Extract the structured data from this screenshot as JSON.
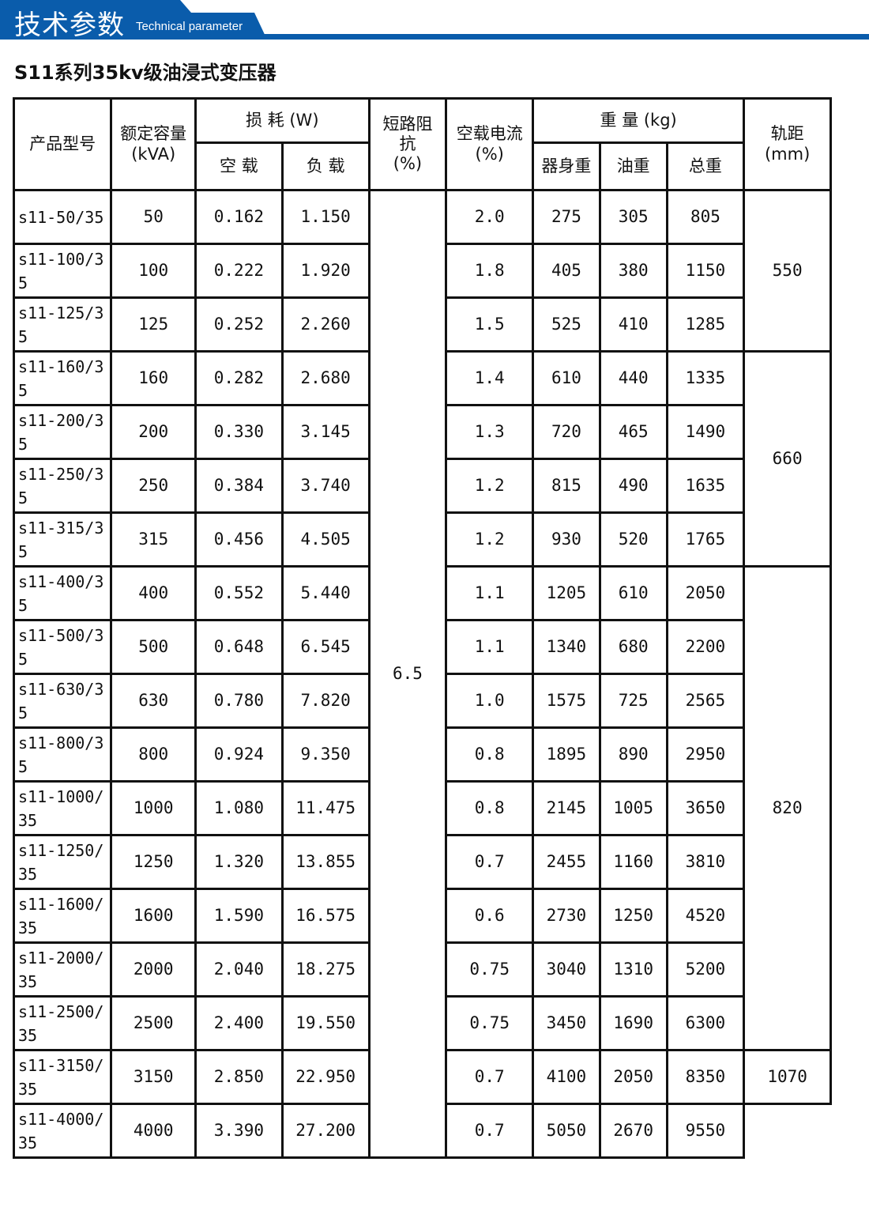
{
  "banner": {
    "title_cn": "技术参数",
    "title_en": "Technical parameter",
    "color": "#0a5cab"
  },
  "doc_title": "S11系列35kv级油浸式变压器",
  "headers": {
    "model": "产品型号",
    "capacity": "额定容量",
    "capacity_unit": "(kVA)",
    "loss": "损 耗 (W)",
    "noload": "空 载",
    "load": "负 载",
    "impedance": "短路阻抗",
    "impedance_unit": "(%)",
    "current": "空载电流",
    "current_unit": "(%)",
    "weight": "重 量 (kg)",
    "body": "器身重",
    "oil": "油重",
    "total": "总重",
    "rail": "轨距",
    "rail_unit": "(mm)"
  },
  "impedance_value": "6.5",
  "rails": [
    "550",
    "660",
    "820",
    "1070"
  ],
  "rows": [
    [
      "s11-50/35",
      "50",
      "0.162",
      "1.150",
      "2.0",
      "275",
      "305",
      "805"
    ],
    [
      "s11-100/35",
      "100",
      "0.222",
      "1.920",
      "1.8",
      "405",
      "380",
      "1150"
    ],
    [
      "s11-125/35",
      "125",
      "0.252",
      "2.260",
      "1.5",
      "525",
      "410",
      "1285"
    ],
    [
      "s11-160/35",
      "160",
      "0.282",
      "2.680",
      "1.4",
      "610",
      "440",
      "1335"
    ],
    [
      "s11-200/35",
      "200",
      "0.330",
      "3.145",
      "1.3",
      "720",
      "465",
      "1490"
    ],
    [
      "s11-250/35",
      "250",
      "0.384",
      "3.740",
      "1.2",
      "815",
      "490",
      "1635"
    ],
    [
      "s11-315/35",
      "315",
      "0.456",
      "4.505",
      "1.2",
      "930",
      "520",
      "1765"
    ],
    [
      "s11-400/35",
      "400",
      "0.552",
      "5.440",
      "1.1",
      "1205",
      "610",
      "2050"
    ],
    [
      "s11-500/35",
      "500",
      "0.648",
      "6.545",
      "1.1",
      "1340",
      "680",
      "2200"
    ],
    [
      "s11-630/35",
      "630",
      "0.780",
      "7.820",
      "1.0",
      "1575",
      "725",
      "2565"
    ],
    [
      "s11-800/35",
      "800",
      "0.924",
      "9.350",
      "0.8",
      "1895",
      "890",
      "2950"
    ],
    [
      "s11-1000/35",
      "1000",
      "1.080",
      "11.475",
      "0.8",
      "2145",
      "1005",
      "3650"
    ],
    [
      "s11-1250/35",
      "1250",
      "1.320",
      "13.855",
      "0.7",
      "2455",
      "1160",
      "3810"
    ],
    [
      "s11-1600/35",
      "1600",
      "1.590",
      "16.575",
      "0.6",
      "2730",
      "1250",
      "4520"
    ],
    [
      "s11-2000/35",
      "2000",
      "2.040",
      "18.275",
      "0.75",
      "3040",
      "1310",
      "5200"
    ],
    [
      "s11-2500/35",
      "2500",
      "2.400",
      "19.550",
      "0.75",
      "3450",
      "1690",
      "6300"
    ],
    [
      "s11-3150/35",
      "3150",
      "2.850",
      "22.950",
      "0.7",
      "4100",
      "2050",
      "8350"
    ],
    [
      "s11-4000/35",
      "4000",
      "3.390",
      "27.200",
      "0.7",
      "5050",
      "2670",
      "9550"
    ]
  ]
}
